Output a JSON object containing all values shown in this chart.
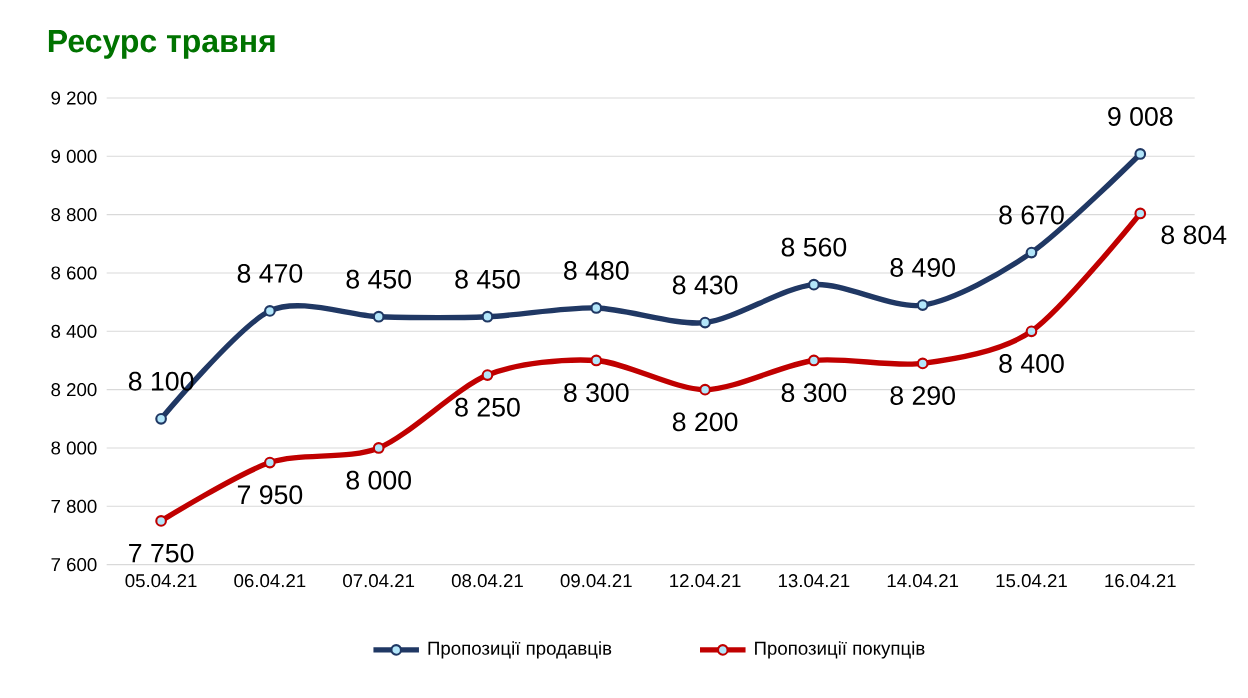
{
  "chart_data": {
    "type": "line",
    "title": "Ресурс травня",
    "categories": [
      "05.04.21",
      "06.04.21",
      "07.04.21",
      "08.04.21",
      "09.04.21",
      "12.04.21",
      "13.04.21",
      "14.04.21",
      "15.04.21",
      "16.04.21"
    ],
    "series": [
      {
        "name": "Пропозиції продавців",
        "color": "#203864",
        "values": [
          8100,
          8470,
          8450,
          8450,
          8480,
          8430,
          8560,
          8490,
          8670,
          9008
        ],
        "value_labels": [
          "8 100",
          "8 470",
          "8 450",
          "8 450",
          "8 480",
          "8 430",
          "8 560",
          "8 490",
          "8 670",
          "9 008"
        ]
      },
      {
        "name": "Пропозиції покупців",
        "color": "#c00000",
        "values": [
          7750,
          7950,
          8000,
          8250,
          8300,
          8200,
          8300,
          8290,
          8400,
          8804
        ],
        "value_labels": [
          "7 750",
          "7 950",
          "8 000",
          "8 250",
          "8 300",
          "8 200",
          "8 300",
          "8 290",
          "8 400",
          "8 804"
        ]
      }
    ],
    "ylim": [
      7600,
      9200
    ],
    "yticks": [
      {
        "value": 7600,
        "label": "7 600"
      },
      {
        "value": 7800,
        "label": "7 800"
      },
      {
        "value": 8000,
        "label": "8 000"
      },
      {
        "value": 8200,
        "label": "8 200"
      },
      {
        "value": 8400,
        "label": "8 400"
      },
      {
        "value": 8600,
        "label": "8 600"
      },
      {
        "value": 8800,
        "label": "8 800"
      },
      {
        "value": 9000,
        "label": "9 000"
      },
      {
        "value": 9200,
        "label": "9 200"
      }
    ],
    "grid": "y",
    "legend": "bottom",
    "marker": "circle",
    "line_style": "solid"
  }
}
